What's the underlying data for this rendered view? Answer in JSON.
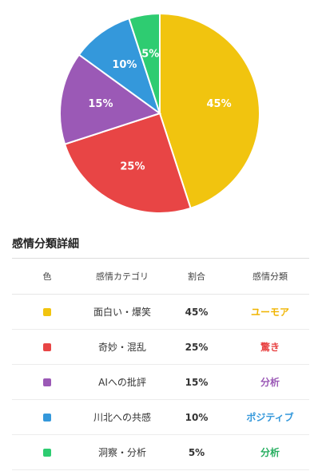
{
  "chart_data": {
    "type": "pie",
    "slices": [
      {
        "label": "面白い・爆笑",
        "value": 45,
        "display": "45%",
        "color": "#f1c40f"
      },
      {
        "label": "奇妙・混乱",
        "value": 25,
        "display": "25%",
        "color": "#e84545"
      },
      {
        "label": "AIへの批評",
        "value": 15,
        "display": "15%",
        "color": "#9b59b6"
      },
      {
        "label": "川北への共感",
        "value": 10,
        "display": "10%",
        "color": "#3498db"
      },
      {
        "label": "洞察・分析",
        "value": 5,
        "display": "5%",
        "color": "#2ecc71"
      }
    ]
  },
  "section": {
    "title": "感情分類詳細"
  },
  "table": {
    "headers": {
      "color": "色",
      "category": "感情カテゴリ",
      "ratio": "割合",
      "classification": "感情分類"
    },
    "rows": [
      {
        "category": "面白い・爆笑",
        "ratio": "45%",
        "classification": "ユーモア",
        "color": "#f1c40f",
        "class_color": "#f0b400"
      },
      {
        "category": "奇妙・混乱",
        "ratio": "25%",
        "classification": "驚き",
        "color": "#e84545",
        "class_color": "#e84545"
      },
      {
        "category": "AIへの批評",
        "ratio": "15%",
        "classification": "分析",
        "color": "#9b59b6",
        "class_color": "#9b59b6"
      },
      {
        "category": "川北への共感",
        "ratio": "10%",
        "classification": "ポジティブ",
        "color": "#3498db",
        "class_color": "#3498db"
      },
      {
        "category": "洞察・分析",
        "ratio": "5%",
        "classification": "分析",
        "color": "#2ecc71",
        "class_color": "#27ae60"
      }
    ]
  }
}
